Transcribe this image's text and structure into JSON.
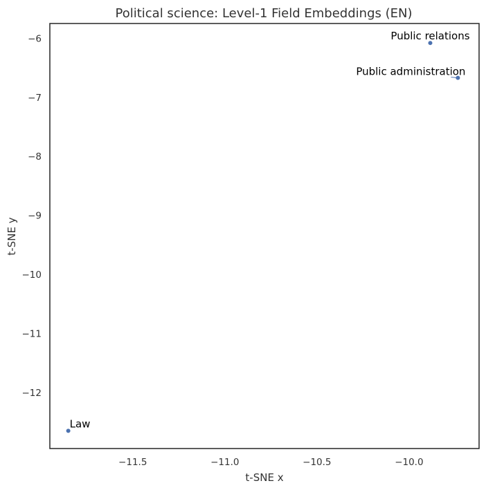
{
  "chart_data": {
    "type": "scatter",
    "title": "Political science: Level-1 Field Embeddings (EN)",
    "xlabel": "t-SNE x",
    "ylabel": "t-SNE y",
    "xlim": [
      -11.95,
      -9.62
    ],
    "ylim": [
      -12.95,
      -5.75
    ],
    "xticks": [
      -11.5,
      -11.0,
      -10.5,
      -10.0
    ],
    "xtick_labels": [
      "−11.5",
      "−11.0",
      "−10.5",
      "−10.0"
    ],
    "yticks": [
      -6,
      -7,
      -8,
      -9,
      -10,
      -11,
      -12
    ],
    "ytick_labels": [
      "−6",
      "−7",
      "−8",
      "−9",
      "−10",
      "−11",
      "−12"
    ],
    "grid": false,
    "point_color": "#4c72b0",
    "points": [
      {
        "label": "Public relations",
        "x": -9.885,
        "y": -6.08
      },
      {
        "label": "Public administration",
        "x": -9.735,
        "y": -6.67
      },
      {
        "label": "Law",
        "x": -11.85,
        "y": -12.65
      }
    ]
  }
}
